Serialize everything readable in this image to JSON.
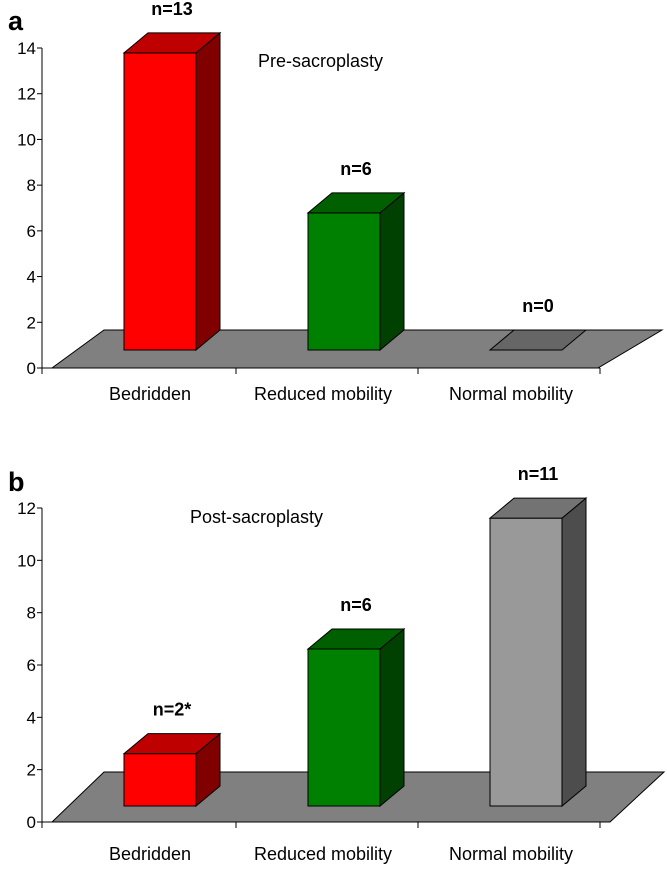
{
  "chart_data": [
    {
      "type": "bar",
      "panel": "a",
      "annotation": "Pre-sacroplasty",
      "categories": [
        "Bedridden",
        "Reduced mobility",
        "Normal mobility"
      ],
      "values": [
        13,
        6,
        0
      ],
      "data_labels": [
        "n=13",
        "n=6",
        "n=0"
      ],
      "colors": [
        "#ff0000",
        "#008000",
        "#808080"
      ],
      "ylim": [
        0,
        14
      ],
      "yticks": [
        "0",
        "2",
        "4",
        "6",
        "8",
        "10",
        "12",
        "14"
      ],
      "style": "3d"
    },
    {
      "type": "bar",
      "panel": "b",
      "annotation": "Post-sacroplasty",
      "categories": [
        "Bedridden",
        "Reduced mobility",
        "Normal mobility"
      ],
      "values": [
        2,
        6,
        11
      ],
      "data_labels": [
        "n=2*",
        "n=6",
        "n=11"
      ],
      "colors": [
        "#ff0000",
        "#008000",
        "#999999"
      ],
      "ylim": [
        0,
        12
      ],
      "yticks": [
        "0",
        "2",
        "4",
        "6",
        "8",
        "10",
        "12"
      ],
      "style": "3d"
    }
  ]
}
